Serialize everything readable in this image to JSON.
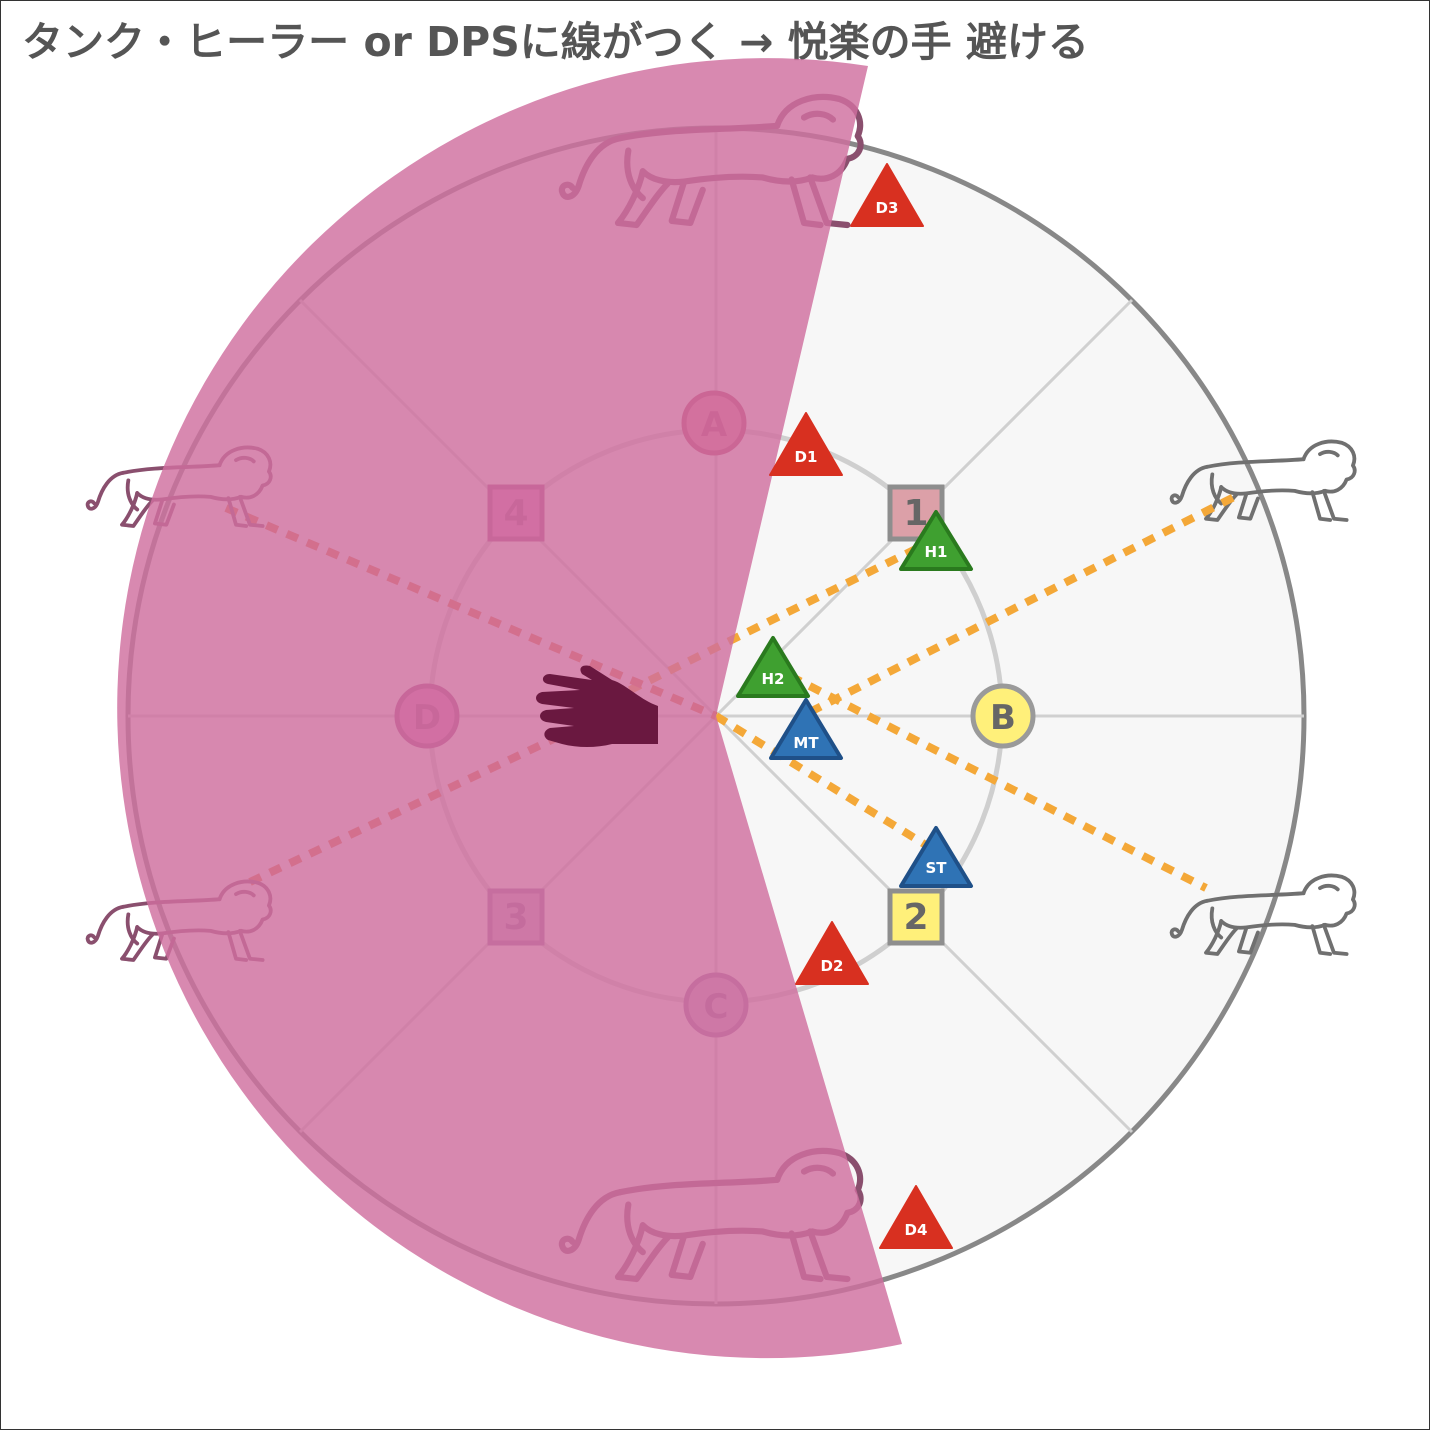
{
  "title": "タンク・ヒーラー or DPSに線がつく → 悦楽の手 避ける",
  "colors": {
    "aoe": "#cf6f9f",
    "arena_floor": "#f7f7f7",
    "arena_rim": "#888888",
    "tether_danger": "#e07040",
    "tether_safe": "#f4a838",
    "tank": "#2f73b5",
    "healer": "#3fa030",
    "dps": "#d83020",
    "hand": "#6a1840"
  },
  "waymarks": {
    "A": "A",
    "B": "B",
    "C": "C",
    "D": "D",
    "1": "1",
    "2": "2",
    "3": "3",
    "4": "4"
  },
  "players": {
    "MT": "MT",
    "ST": "ST",
    "H1": "H1",
    "H2": "H2",
    "D1": "D1",
    "D2": "D2",
    "D3": "D3",
    "D4": "D4"
  },
  "icons": {
    "enemy": "lion-icon",
    "mechanic": "hand-icon"
  }
}
